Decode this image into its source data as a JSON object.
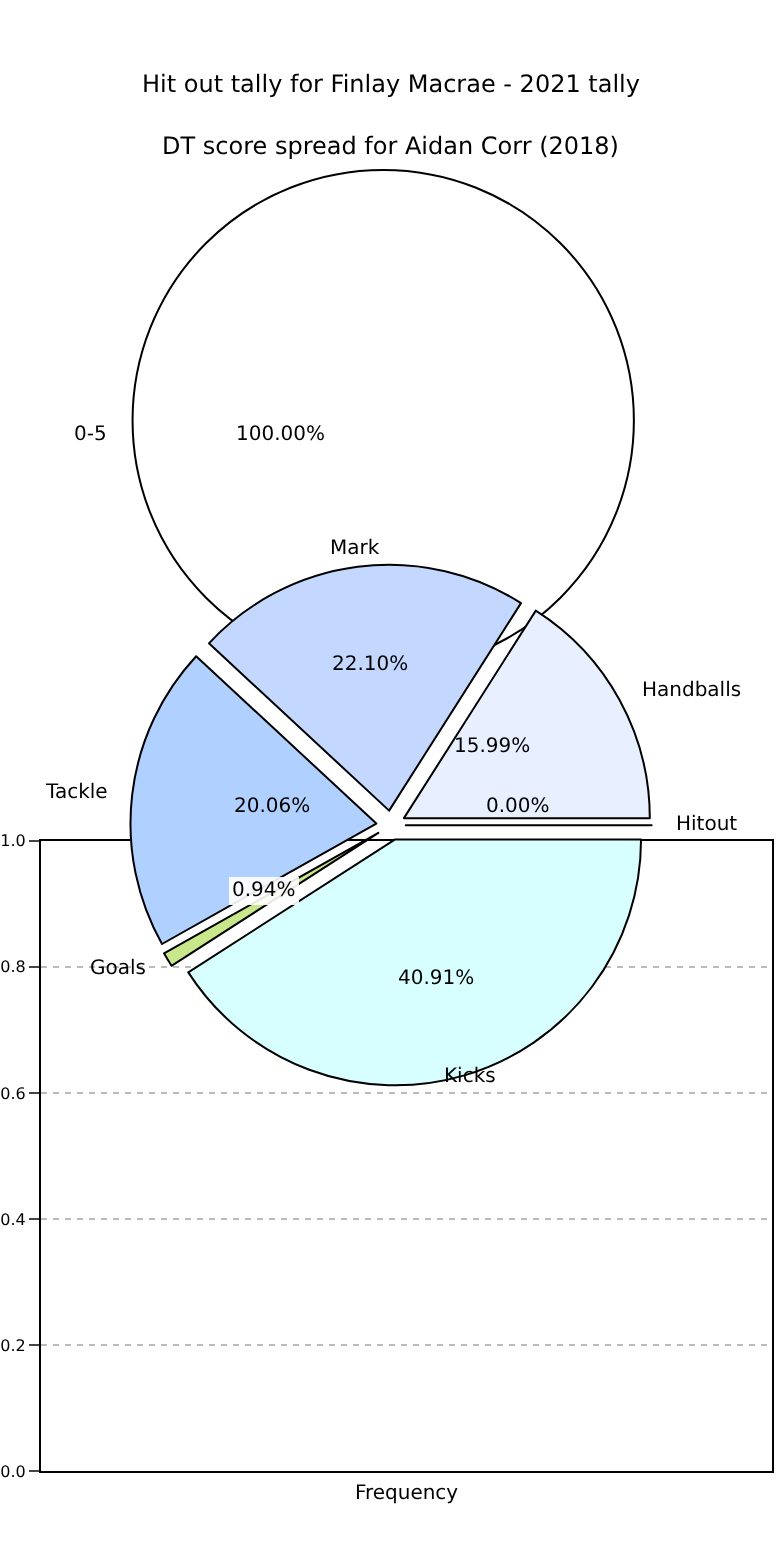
{
  "chart_data": [
    {
      "type": "pie",
      "title": "Hit out tally for Finlay Macrae - 2021 tally",
      "categories": [
        "0-5"
      ],
      "values": [
        100
      ],
      "colors": [
        "#ffffff"
      ],
      "value_labels": [
        "100.00%"
      ]
    },
    {
      "type": "bar",
      "xlabel": "Frequency",
      "categories": [
        null
      ],
      "values": [
        null
      ],
      "ylim": [
        0,
        1
      ],
      "yticks": [
        {
          "value": 0,
          "label": "0.0"
        },
        {
          "value": 0.2,
          "label": "0.2"
        },
        {
          "value": 0.4,
          "label": "0.4"
        },
        {
          "value": 0.6,
          "label": "0.6"
        },
        {
          "value": 0.8,
          "label": "0.8"
        },
        {
          "value": 1,
          "label": "1.0"
        }
      ],
      "grid": "y"
    },
    {
      "type": "pie",
      "title": "DT score spread for Aidan Corr (2018)",
      "categories": [
        "Hitout",
        "Handballs",
        "Mark",
        "Tackle",
        "Goals",
        "Kicks"
      ],
      "values": [
        0.0,
        15.99,
        22.1,
        20.06,
        0.94,
        40.91
      ],
      "colors": [
        "#ffffff",
        "#e8efff",
        "#c4d8ff",
        "#b0d0ff",
        "#c8e68a",
        "#d8ffff"
      ],
      "value_labels": [
        "0.00%",
        "15.99%",
        "22.10%",
        "20.06%",
        "0.94%",
        "40.91%"
      ]
    }
  ]
}
